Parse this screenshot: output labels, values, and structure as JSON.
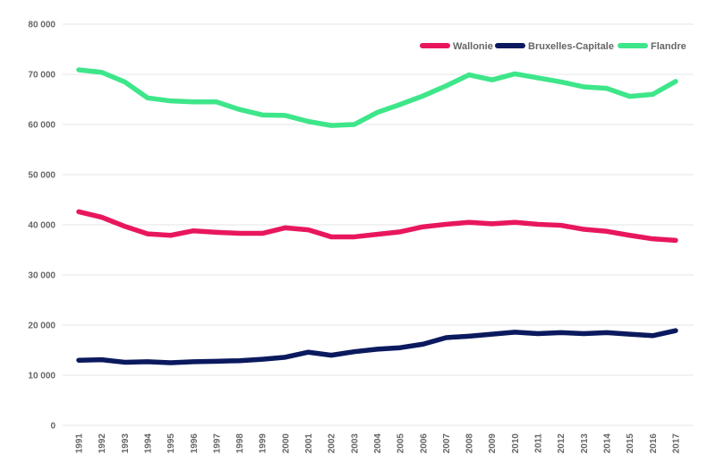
{
  "chart_data": {
    "type": "line",
    "title": "",
    "xlabel": "",
    "ylabel": "",
    "x": [
      "1991",
      "1992",
      "1993",
      "1994",
      "1995",
      "1996",
      "1997",
      "1998",
      "1999",
      "2000",
      "2001",
      "2002",
      "2003",
      "2004",
      "2005",
      "2006",
      "2007",
      "2008",
      "2009",
      "2010",
      "2011",
      "2012",
      "2013",
      "2014",
      "2015",
      "2016",
      "2017"
    ],
    "ylim": [
      0,
      80000
    ],
    "yticks": [
      0,
      10000,
      20000,
      30000,
      40000,
      50000,
      60000,
      70000,
      80000
    ],
    "ytick_labels": [
      "0",
      "10 000",
      "20 000",
      "30 000",
      "40 000",
      "50 000",
      "60 000",
      "70 000",
      "80 000"
    ],
    "grid": "horizontal",
    "legend_position": "top-right",
    "series": [
      {
        "name": "Wallonie",
        "color": "#e8175d",
        "values": [
          42600,
          41500,
          39700,
          38200,
          37900,
          38800,
          38500,
          38300,
          38300,
          39400,
          39000,
          37600,
          37600,
          38100,
          38600,
          39600,
          40100,
          40500,
          40200,
          40500,
          40100,
          39900,
          39100,
          38700,
          37900,
          37200,
          36900
        ]
      },
      {
        "name": "Bruxelles-Capitale",
        "color": "#0b1a5e",
        "values": [
          13000,
          13100,
          12600,
          12700,
          12500,
          12700,
          12800,
          12900,
          13200,
          13600,
          14600,
          14000,
          14700,
          15200,
          15500,
          16200,
          17500,
          17800,
          18200,
          18600,
          18300,
          18500,
          18300,
          18500,
          18200,
          17900,
          18900
        ]
      },
      {
        "name": "Flandre",
        "color": "#3ee68a",
        "values": [
          70900,
          70400,
          68500,
          65300,
          64700,
          64500,
          64500,
          63000,
          61900,
          61800,
          60600,
          59800,
          60000,
          62400,
          64000,
          65700,
          67700,
          69900,
          68900,
          70100,
          69300,
          68500,
          67500,
          67200,
          65600,
          66000,
          68600
        ]
      }
    ]
  }
}
